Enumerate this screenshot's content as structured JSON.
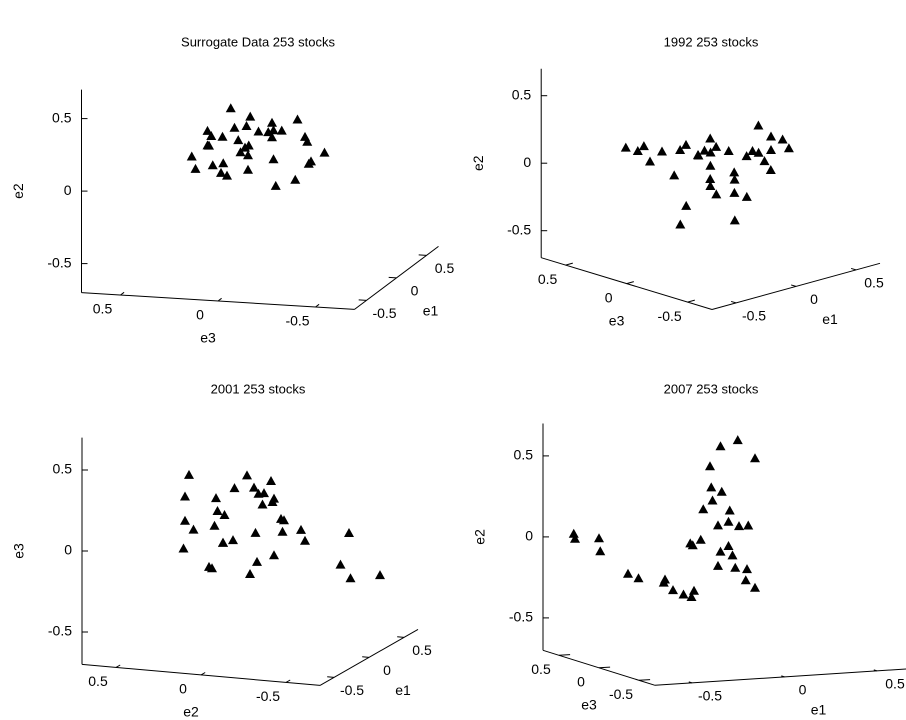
{
  "chart_data": [
    {
      "type": "scatter3d",
      "title": "Surrogate  Data   253 stocks",
      "xlabel": "e1",
      "ylabel": "e3",
      "zlabel": "e2",
      "xlim": [
        -0.7,
        0.7
      ],
      "ylim": [
        -0.7,
        0.7
      ],
      "zlim": [
        -0.7,
        0.7
      ],
      "xticks": [
        -0.5,
        0,
        0.5
      ],
      "yticks": [
        -0.5,
        0,
        0.5
      ],
      "zticks": [
        -0.5,
        0,
        0.5
      ],
      "color": "#000000",
      "x": [
        0.1,
        -0.2,
        0.3,
        0,
        0.2,
        -0.1,
        0.4,
        -0.3,
        0.1,
        0,
        0.2,
        -0.2,
        0.3,
        0.1,
        -0.1,
        0,
        0.2,
        -0.3,
        0.1,
        0.3,
        -0.1,
        0,
        0.2,
        0.1,
        -0.2,
        0.3,
        0,
        0.1,
        -0.1,
        0.2,
        0,
        0.1,
        -0.2,
        0.3,
        0.1,
        0
      ],
      "y": [
        0.3,
        0.2,
        0.1,
        0.35,
        0,
        -0.1,
        0.2,
        0.15,
        -0.2,
        0.05,
        0.25,
        0,
        -0.15,
        0.1,
        0.3,
        -0.25,
        -0.05,
        0.1,
        0.2,
        0.05,
        -0.1,
        0.15,
        -0.2,
        0.3,
        0,
        -0.1,
        0.2,
        -0.3,
        0.1,
        0,
        0.25,
        -0.15,
        0.05,
        0.15,
        -0.05,
        0.1
      ],
      "z": [
        0.1,
        0.2,
        0.15,
        0.05,
        0.25,
        0.3,
        0,
        0.1,
        0.2,
        0.35,
        -0.05,
        0.15,
        0.1,
        0.25,
        0,
        0.05,
        0.2,
        0.3,
        -0.1,
        0.15,
        0.1,
        0.4,
        0,
        0.2,
        0.05,
        0.25,
        -0.05,
        0.1,
        0.3,
        0.15,
        0.2,
        -0.1,
        0.25,
        0.05,
        -0.15,
        0.1
      ]
    },
    {
      "type": "scatter3d",
      "title": "1992  253 stocks",
      "xlabel": "e1",
      "ylabel": "e3",
      "zlabel": "e2",
      "xlim": [
        -0.7,
        0.7
      ],
      "ylim": [
        -0.7,
        0.7
      ],
      "zlim": [
        -0.7,
        0.7
      ],
      "xticks": [
        -0.5,
        0,
        0.5
      ],
      "yticks": [
        -0.5,
        0,
        0.5
      ],
      "zticks": [
        -0.5,
        0,
        0.5
      ],
      "color": "#000000",
      "x": [
        0.2,
        -0.1,
        0.3,
        0.5,
        0.4,
        0,
        -0.2,
        0.1,
        0.6,
        0.3,
        -0.3,
        0.2,
        0.1,
        0.4,
        -0.1,
        0,
        0.5,
        0.2,
        0.3,
        -0.2,
        0.1,
        0.4,
        0,
        0.2,
        0.3,
        -0.1,
        0.5,
        0.1,
        0.2,
        0,
        0.3,
        0.4,
        -0.2,
        0.1,
        0.2,
        0
      ],
      "y": [
        0.2,
        0.3,
        0,
        0.1,
        -0.1,
        0.25,
        0.35,
        0.1,
        0,
        -0.2,
        0.4,
        0.15,
        -0.1,
        0.05,
        0.2,
        0,
        -0.15,
        0.3,
        0.1,
        0.3,
        -0.05,
        0.2,
        0.1,
        -0.1,
        0.25,
        0.15,
        0.05,
        0.3,
        0,
        0.2,
        -0.2,
        0,
        0.4,
        0.1,
        0.2,
        0.05
      ],
      "z": [
        0.1,
        0.05,
        0,
        0.15,
        -0.1,
        0.05,
        0.1,
        -0.2,
        0.05,
        0.2,
        0.1,
        -0.3,
        -0.4,
        0,
        -0.1,
        0.1,
        0.05,
        -0.05,
        -0.3,
        0,
        0.1,
        -0.2,
        0.05,
        -0.25,
        0,
        -0.45,
        -0.1,
        0.05,
        -0.15,
        -0.35,
        0.1,
        0,
        0.05,
        -0.05,
        -0.2,
        0.1
      ]
    },
    {
      "type": "scatter3d",
      "title": "2001  253 stocks",
      "xlabel": "e1",
      "ylabel": "e2",
      "zlabel": "e3",
      "xlim": [
        -0.7,
        0.7
      ],
      "ylim": [
        -0.7,
        0.7
      ],
      "zlim": [
        -0.7,
        0.7
      ],
      "xticks": [
        -0.5,
        0,
        0.5
      ],
      "yticks": [
        -0.5,
        0,
        0.5
      ],
      "zticks": [
        -0.5,
        0,
        0.5
      ],
      "color": "#000000",
      "x": [
        0.1,
        -0.2,
        0,
        0.2,
        0.3,
        -0.1,
        0.1,
        0,
        0.2,
        -0.3,
        0.1,
        0.2,
        0,
        -0.1,
        0.3,
        0.1,
        -0.2,
        0,
        0.2,
        0.1,
        -0.1,
        0,
        0.3,
        0.2,
        0.1,
        -0.1,
        0,
        0.2,
        0.1,
        0.3,
        0.2,
        0.4,
        0.1,
        0,
        -0.2,
        0.1
      ],
      "y": [
        0.4,
        0.3,
        0.2,
        0.1,
        0,
        0.35,
        -0.1,
        0.15,
        -0.05,
        0.1,
        0.25,
        0.05,
        -0.2,
        0.2,
        0.1,
        -0.15,
        0.3,
        0,
        -0.1,
        0.2,
        0.05,
        -0.3,
        -0.2,
        -0.5,
        -0.55,
        0.15,
        0.1,
        0,
        -0.1,
        0.05,
        -0.45,
        -0.6,
        0.2,
        -0.05,
        0.25,
        0
      ],
      "z": [
        0.3,
        0.25,
        0.2,
        0.3,
        0.25,
        -0.1,
        0.2,
        0.1,
        0.15,
        -0.15,
        0,
        -0.05,
        0.1,
        -0.2,
        0.2,
        0,
        0.1,
        -0.25,
        0.05,
        -0.1,
        0.3,
        0.05,
        -0.1,
        0,
        -0.25,
        0.15,
        -0.05,
        0.2,
        -0.15,
        0.1,
        -0.2,
        -0.3,
        -0.1,
        0.25,
        0.05,
        -0.2
      ]
    },
    {
      "type": "scatter3d",
      "title": "2007  253 stocks",
      "xlabel": "e1",
      "ylabel": "e3",
      "zlabel": "e2",
      "xlim": [
        -0.7,
        0.7
      ],
      "ylim": [
        -0.7,
        0.7
      ],
      "zlim": [
        -0.7,
        0.7
      ],
      "xticks": [
        -0.5,
        0,
        0.5
      ],
      "yticks": [
        -0.5,
        0,
        0.5
      ],
      "zticks": [
        -0.5,
        0,
        0.5
      ],
      "color": "#000000",
      "x": [
        -0.75,
        -0.7,
        -0.65,
        -0.7,
        -0.5,
        -0.4,
        -0.3,
        -0.2,
        -0.1,
        0,
        0.1,
        -0.05,
        0.05,
        -0.15,
        0,
        0.1,
        -0.1,
        0.05,
        -0.2,
        0,
        0.1,
        -0.1,
        0.15,
        -0.05,
        0,
        0.05,
        -0.3,
        -0.25,
        -0.1,
        0,
        -0.15,
        0.1,
        -0.35,
        -0.05,
        0,
        0.05
      ],
      "y": [
        0.2,
        0.3,
        0.1,
        0,
        0.1,
        0.2,
        0,
        0.1,
        -0.1,
        0,
        0.1,
        0.2,
        -0.1,
        0,
        0.1,
        0,
        -0.1,
        0.2,
        0,
        0.1,
        -0.1,
        0,
        0.1,
        -0.2,
        0.2,
        0,
        0.1,
        -0.1,
        0.2,
        0,
        0.1,
        -0.1,
        0,
        0.1,
        -0.05,
        0.1
      ],
      "z": [
        0.1,
        0.05,
        0,
        0.1,
        -0.15,
        -0.2,
        -0.25,
        -0.3,
        -0.1,
        0,
        0.1,
        0.2,
        -0.2,
        0.05,
        -0.05,
        -0.15,
        0.15,
        0.3,
        -0.3,
        0.6,
        0.55,
        0.5,
        0.1,
        -0.1,
        0.25,
        0.65,
        -0.2,
        0.05,
        -0.3,
        0.15,
        0,
        -0.25,
        -0.2,
        0.35,
        -0.05,
        0.2
      ]
    }
  ]
}
